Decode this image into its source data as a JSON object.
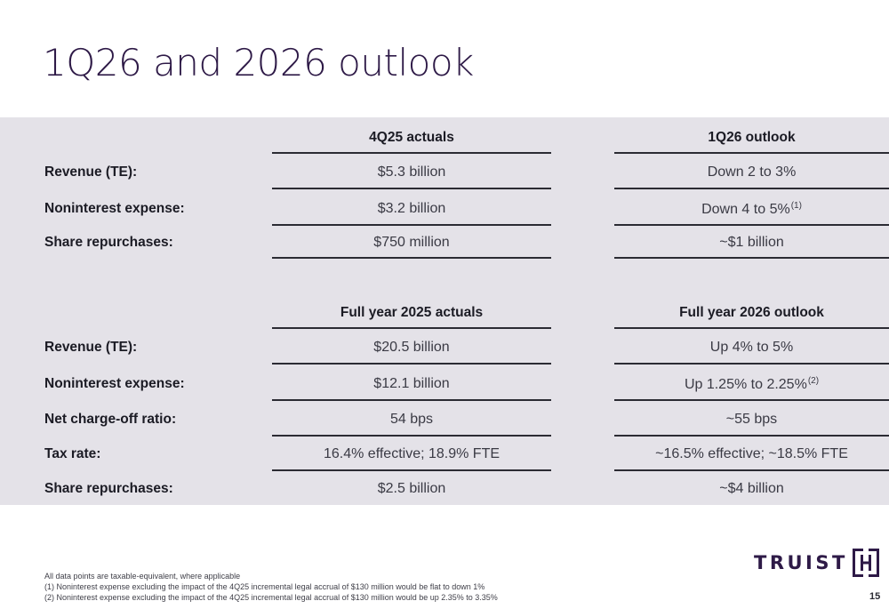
{
  "title": "1Q26 and 2026 outlook",
  "quarter": {
    "col1_header": "4Q25 actuals",
    "col2_header": "1Q26 outlook",
    "rows": [
      {
        "label": "Revenue (TE):",
        "actual": "$5.3 billion",
        "outlook": "Down 2 to 3%",
        "note": ""
      },
      {
        "label": "Noninterest expense:",
        "actual": "$3.2 billion",
        "outlook": "Down 4 to 5%",
        "note": "(1)"
      },
      {
        "label": "Share repurchases:",
        "actual": "$750 million",
        "outlook": "~$1 billion",
        "note": ""
      }
    ]
  },
  "year": {
    "col1_header": "Full year 2025 actuals",
    "col2_header": "Full year 2026 outlook",
    "rows": [
      {
        "label": "Revenue (TE):",
        "actual": "$20.5 billion",
        "outlook": "Up 4% to 5%",
        "note": ""
      },
      {
        "label": "Noninterest expense:",
        "actual": "$12.1 billion",
        "outlook": "Up 1.25% to 2.25%",
        "note": "(2)"
      },
      {
        "label": "Net charge-off ratio:",
        "actual": "54 bps",
        "outlook": "~55 bps",
        "note": ""
      },
      {
        "label": "Tax rate:",
        "actual": "16.4% effective; 18.9% FTE",
        "outlook": "~16.5% effective; ~18.5% FTE",
        "note": ""
      },
      {
        "label": "Share repurchases:",
        "actual": "$2.5 billion",
        "outlook": "~$4 billion",
        "note": ""
      }
    ]
  },
  "footnotes": [
    "All data points are taxable-equivalent, where applicable",
    "(1)  Noninterest expense excluding the impact of the 4Q25 incremental legal accrual of $130 million would be flat to down 1%",
    "(2)  Noninterest expense excluding the impact of the 4Q25 incremental legal accrual of $130 million would be up 2.35% to 3.35%"
  ],
  "logo": {
    "text": "TRUIST",
    "icon": "truist-logo-mark-icon",
    "color": "#2e1a47"
  },
  "page_number": "15"
}
